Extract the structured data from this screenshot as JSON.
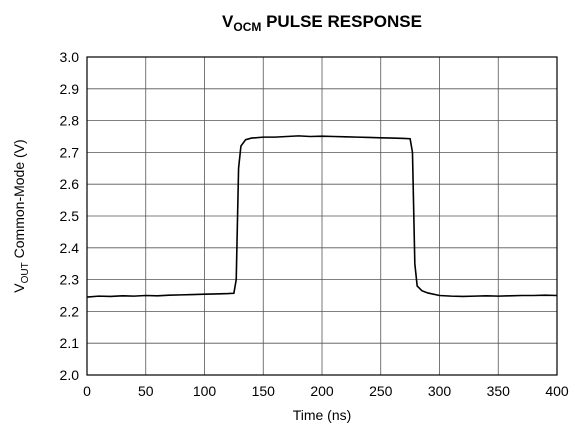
{
  "chart_data": {
    "type": "line",
    "title": [
      "V",
      "OCM",
      " PULSE RESPONSE"
    ],
    "xlabel": "Time (ns)",
    "ylabel": [
      "V",
      "OUT",
      " Common-Mode (V)"
    ],
    "x": [
      0,
      10,
      20,
      30,
      40,
      50,
      60,
      70,
      80,
      90,
      100,
      110,
      120,
      125,
      127,
      129,
      131,
      135,
      140,
      150,
      160,
      170,
      180,
      190,
      200,
      210,
      220,
      230,
      240,
      250,
      260,
      270,
      275,
      277,
      279,
      281,
      285,
      290,
      300,
      310,
      320,
      330,
      340,
      350,
      360,
      370,
      380,
      390,
      400
    ],
    "series": [
      {
        "color": "#000000",
        "values": [
          2.245,
          2.248,
          2.247,
          2.249,
          2.248,
          2.25,
          2.249,
          2.251,
          2.252,
          2.253,
          2.254,
          2.255,
          2.256,
          2.257,
          2.3,
          2.65,
          2.72,
          2.74,
          2.745,
          2.748,
          2.748,
          2.75,
          2.752,
          2.75,
          2.751,
          2.75,
          2.749,
          2.748,
          2.747,
          2.746,
          2.745,
          2.744,
          2.743,
          2.7,
          2.35,
          2.28,
          2.265,
          2.258,
          2.25,
          2.248,
          2.247,
          2.248,
          2.249,
          2.248,
          2.249,
          2.25,
          2.25,
          2.251,
          2.25
        ]
      }
    ],
    "xlim": [
      0,
      400
    ],
    "xticks": [
      0,
      50,
      100,
      150,
      200,
      250,
      300,
      350,
      400
    ],
    "ylim": [
      2,
      3
    ],
    "yticks": [
      {
        "value": 2,
        "label": "2.0"
      },
      2.1,
      2.2,
      2.3,
      2.4,
      2.5,
      2.6,
      2.7,
      2.8,
      2.9,
      {
        "value": 3,
        "label": "3.0"
      }
    ],
    "grid": true
  }
}
